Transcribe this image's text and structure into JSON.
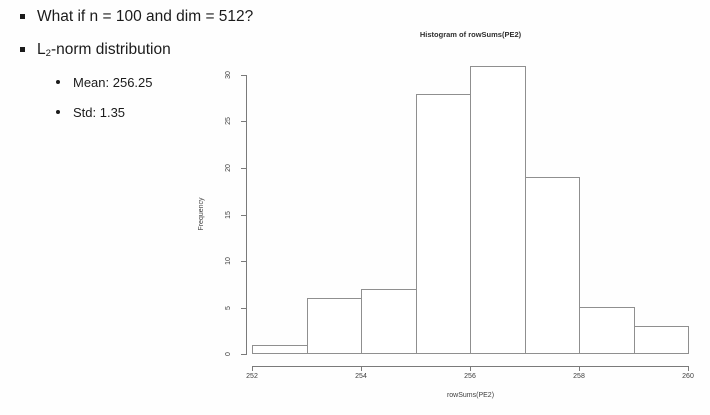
{
  "slide": {
    "bullet1": "What if n = 100 and dim = 512?",
    "bullet2": {
      "base": "L",
      "sub": "2",
      "rest": "-norm distribution"
    },
    "sub_bullets": [
      "Mean: 256.25",
      "Std: 1.35"
    ]
  },
  "chart_data": {
    "type": "bar",
    "chart_kind": "histogram",
    "title": "Histogram of rowSums(PE2)",
    "xlabel": "rowSums(PE2)",
    "ylabel": "Frequency",
    "bin_edges": [
      252,
      253,
      254,
      255,
      256,
      257,
      258,
      259,
      260
    ],
    "counts": [
      1,
      6,
      7,
      28,
      31,
      19,
      5,
      3
    ],
    "xlim": [
      252,
      260
    ],
    "ylim": [
      0,
      30
    ],
    "x_ticks": [
      252,
      254,
      256,
      258,
      260
    ],
    "y_ticks": [
      0,
      5,
      10,
      15,
      20,
      25,
      30
    ],
    "grid": false,
    "legend": "none",
    "bar_fill": "#ffffff",
    "bar_border": "#8f8f8f",
    "axis_color": "#7a7a7a",
    "text_color": "#3d3d3d"
  }
}
